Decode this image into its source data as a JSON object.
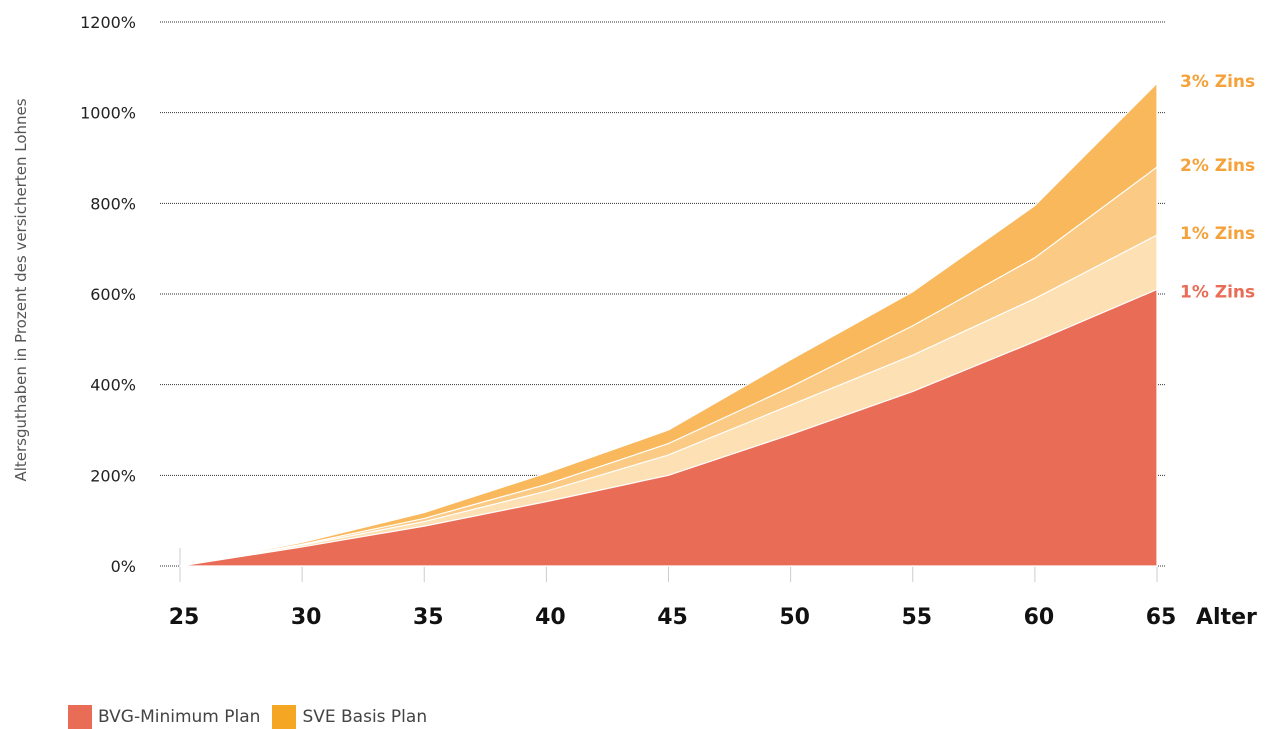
{
  "chart_data": {
    "type": "area",
    "ylabel": "Altersguthaben in Prozent des versicherten Lohnes",
    "xlabel": "Alter",
    "x": [
      25,
      30,
      35,
      40,
      45,
      50,
      55,
      60,
      65
    ],
    "x_ticks": [
      "25",
      "30",
      "35",
      "40",
      "45",
      "50",
      "55",
      "60",
      "65"
    ],
    "y_ticks": [
      "0%",
      "200%",
      "400%",
      "600%",
      "800%",
      "1000%",
      "1200%"
    ],
    "ylim": [
      0,
      1200
    ],
    "xlim": [
      25,
      65
    ],
    "grid": true,
    "series": [
      {
        "label": "3% Zins",
        "plan": "SVE Basis Plan",
        "color": "#f8b85b",
        "label_color": "#f5a23a",
        "values": [
          0,
          52,
          118,
          205,
          300,
          455,
          605,
          795,
          1065
        ]
      },
      {
        "label": "2% Zins",
        "plan": "SVE Basis Plan",
        "color": "#fbca84",
        "label_color": "#f5a23a",
        "values": [
          0,
          48,
          105,
          180,
          270,
          395,
          530,
          680,
          880
        ]
      },
      {
        "label": "1% Zins",
        "plan": "SVE Basis Plan",
        "color": "#fde0b3",
        "label_color": "#f5a23a",
        "values": [
          0,
          46,
          98,
          165,
          245,
          355,
          465,
          590,
          730
        ]
      },
      {
        "label": "1% Zins",
        "plan": "BVG-Minimum Plan",
        "color": "#e96d56",
        "label_color": "#e96d56",
        "values": [
          0,
          42,
          88,
          142,
          200,
          290,
          385,
          495,
          610
        ]
      }
    ],
    "legend": [
      {
        "label": "BVG-Minimum Plan",
        "color": "#e96d56"
      },
      {
        "label": "SVE Basis Plan",
        "color": "#f5a623"
      }
    ],
    "legend_position": "bottom-left"
  }
}
